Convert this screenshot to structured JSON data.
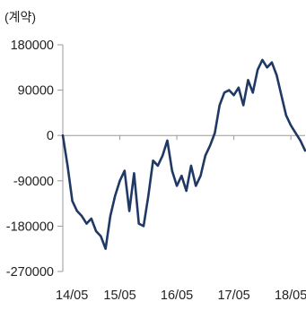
{
  "chart_data": {
    "type": "line",
    "unit_label": "(계약)",
    "ylim": [
      -270000,
      180000
    ],
    "yticks": [
      {
        "value": 180000,
        "label": "180000"
      },
      {
        "value": 90000,
        "label": "90000"
      },
      {
        "value": 0,
        "label": "0"
      },
      {
        "value": -90000,
        "label": "-90000"
      },
      {
        "value": -180000,
        "label": "-180000"
      },
      {
        "value": -270000,
        "label": "-270000"
      }
    ],
    "xlim": [
      "2014-05",
      "2018-08"
    ],
    "xticks": [
      {
        "value": "2014-05",
        "label": "14/05"
      },
      {
        "value": "2015-05",
        "label": "15/05"
      },
      {
        "value": "2016-05",
        "label": "16/05"
      },
      {
        "value": "2017-05",
        "label": "17/05"
      },
      {
        "value": "2018-05",
        "label": "18/05"
      }
    ],
    "grid": false,
    "colors": {
      "line": "#1f3864",
      "axis": "#9a9a9a",
      "text": "#222222"
    },
    "series": [
      {
        "x": [
          "2014-05",
          "2014-06",
          "2014-07",
          "2014-08",
          "2014-09",
          "2014-10",
          "2014-11",
          "2014-12",
          "2015-01",
          "2015-02",
          "2015-03",
          "2015-04",
          "2015-05",
          "2015-06",
          "2015-07",
          "2015-08",
          "2015-09",
          "2015-10",
          "2015-11",
          "2015-12",
          "2016-01",
          "2016-02",
          "2016-03",
          "2016-04",
          "2016-05",
          "2016-06",
          "2016-07",
          "2016-08",
          "2016-09",
          "2016-10",
          "2016-11",
          "2016-12",
          "2017-01",
          "2017-02",
          "2017-03",
          "2017-04",
          "2017-05",
          "2017-06",
          "2017-07",
          "2017-08",
          "2017-09",
          "2017-10",
          "2017-11",
          "2017-12",
          "2018-01",
          "2018-02",
          "2018-03",
          "2018-04",
          "2018-05",
          "2018-06",
          "2018-07",
          "2018-08"
        ],
        "values": [
          0,
          -60000,
          -130000,
          -150000,
          -160000,
          -175000,
          -165000,
          -190000,
          -200000,
          -225000,
          -160000,
          -120000,
          -90000,
          -70000,
          -150000,
          -75000,
          -175000,
          -180000,
          -120000,
          -50000,
          -60000,
          -40000,
          -10000,
          -70000,
          -100000,
          -80000,
          -110000,
          -60000,
          -100000,
          -80000,
          -40000,
          -20000,
          5000,
          60000,
          85000,
          90000,
          80000,
          95000,
          60000,
          110000,
          85000,
          130000,
          150000,
          135000,
          145000,
          120000,
          80000,
          40000,
          20000,
          5000,
          -10000,
          -30000
        ]
      }
    ]
  }
}
